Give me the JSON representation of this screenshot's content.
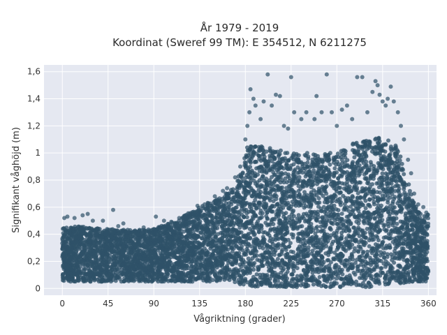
{
  "chart_data": {
    "type": "scatter",
    "title_line1": "År 1979 - 2019",
    "title_line2": "Koordinat (Sweref 99 TM): E 354512, N 6211275",
    "xlabel": "Vågriktning (grader)",
    "ylabel": "Signifikant våghöjd (m)",
    "xlim": [
      -18,
      368
    ],
    "ylim": [
      -0.05,
      1.65
    ],
    "x_ticks": [
      0,
      45,
      90,
      135,
      180,
      225,
      270,
      315,
      360
    ],
    "x_tick_labels": [
      "0",
      "45",
      "90",
      "135",
      "180",
      "225",
      "270",
      "315",
      "360"
    ],
    "y_ticks": [
      0,
      0.2,
      0.4,
      0.6,
      0.8,
      1.0,
      1.2,
      1.4,
      1.6
    ],
    "y_tick_labels": [
      "0",
      "0,2",
      "0,4",
      "0,6",
      "0,8",
      "1",
      "1,2",
      "1,4",
      "1,6"
    ],
    "grid": true,
    "background_color": "#e5e8f1",
    "marker_color": "#2f5168",
    "envelope": {
      "x": [
        0,
        20,
        45,
        70,
        90,
        110,
        135,
        150,
        165,
        175,
        182,
        200,
        225,
        250,
        270,
        285,
        300,
        315,
        330,
        338,
        345,
        352,
        360
      ],
      "low": [
        0.05,
        0.05,
        0.05,
        0.05,
        0.05,
        0.05,
        0.05,
        0.05,
        0.04,
        0.03,
        0.01,
        0.01,
        0.01,
        0.01,
        0.01,
        0.01,
        0.01,
        0.02,
        0.03,
        0.04,
        0.05,
        0.05,
        0.05
      ],
      "high": [
        0.45,
        0.46,
        0.44,
        0.43,
        0.44,
        0.5,
        0.6,
        0.66,
        0.72,
        0.85,
        1.05,
        1.05,
        1.0,
        1.0,
        1.0,
        1.07,
        1.1,
        1.12,
        1.05,
        0.85,
        0.65,
        0.55,
        0.55
      ]
    },
    "outliers": [
      {
        "x": 2,
        "y": 0.52
      },
      {
        "x": 5,
        "y": 0.53
      },
      {
        "x": 12,
        "y": 0.52
      },
      {
        "x": 20,
        "y": 0.54
      },
      {
        "x": 25,
        "y": 0.55
      },
      {
        "x": 30,
        "y": 0.5
      },
      {
        "x": 40,
        "y": 0.5
      },
      {
        "x": 50,
        "y": 0.58
      },
      {
        "x": 55,
        "y": 0.46
      },
      {
        "x": 60,
        "y": 0.48
      },
      {
        "x": 80,
        "y": 0.45
      },
      {
        "x": 92,
        "y": 0.53
      },
      {
        "x": 100,
        "y": 0.5
      },
      {
        "x": 115,
        "y": 0.52
      },
      {
        "x": 125,
        "y": 0.55
      },
      {
        "x": 133,
        "y": 0.61
      },
      {
        "x": 140,
        "y": 0.62
      },
      {
        "x": 150,
        "y": 0.68
      },
      {
        "x": 158,
        "y": 0.72
      },
      {
        "x": 162,
        "y": 0.74
      },
      {
        "x": 170,
        "y": 0.82
      },
      {
        "x": 175,
        "y": 0.9
      },
      {
        "x": 180,
        "y": 1.1
      },
      {
        "x": 182,
        "y": 1.2
      },
      {
        "x": 184,
        "y": 1.3
      },
      {
        "x": 185,
        "y": 1.47
      },
      {
        "x": 188,
        "y": 1.4
      },
      {
        "x": 190,
        "y": 1.35
      },
      {
        "x": 195,
        "y": 1.25
      },
      {
        "x": 198,
        "y": 1.38
      },
      {
        "x": 202,
        "y": 1.58
      },
      {
        "x": 206,
        "y": 1.35
      },
      {
        "x": 210,
        "y": 1.43
      },
      {
        "x": 214,
        "y": 1.42
      },
      {
        "x": 218,
        "y": 1.2
      },
      {
        "x": 222,
        "y": 1.18
      },
      {
        "x": 225,
        "y": 1.56
      },
      {
        "x": 228,
        "y": 1.3
      },
      {
        "x": 235,
        "y": 1.25
      },
      {
        "x": 240,
        "y": 1.3
      },
      {
        "x": 248,
        "y": 1.25
      },
      {
        "x": 250,
        "y": 1.42
      },
      {
        "x": 255,
        "y": 1.3
      },
      {
        "x": 260,
        "y": 1.58
      },
      {
        "x": 265,
        "y": 1.3
      },
      {
        "x": 270,
        "y": 1.2
      },
      {
        "x": 275,
        "y": 1.32
      },
      {
        "x": 280,
        "y": 1.35
      },
      {
        "x": 285,
        "y": 1.25
      },
      {
        "x": 290,
        "y": 1.56
      },
      {
        "x": 295,
        "y": 1.56
      },
      {
        "x": 300,
        "y": 1.3
      },
      {
        "x": 305,
        "y": 1.45
      },
      {
        "x": 308,
        "y": 1.53
      },
      {
        "x": 310,
        "y": 1.5
      },
      {
        "x": 312,
        "y": 1.43
      },
      {
        "x": 315,
        "y": 1.38
      },
      {
        "x": 318,
        "y": 1.35
      },
      {
        "x": 320,
        "y": 1.4
      },
      {
        "x": 323,
        "y": 1.49
      },
      {
        "x": 326,
        "y": 1.38
      },
      {
        "x": 330,
        "y": 1.3
      },
      {
        "x": 333,
        "y": 1.2
      },
      {
        "x": 336,
        "y": 1.1
      },
      {
        "x": 340,
        "y": 0.95
      },
      {
        "x": 343,
        "y": 0.85
      },
      {
        "x": 346,
        "y": 0.7
      },
      {
        "x": 350,
        "y": 0.62
      },
      {
        "x": 355,
        "y": 0.6
      },
      {
        "x": 358,
        "y": 0.56
      }
    ]
  }
}
